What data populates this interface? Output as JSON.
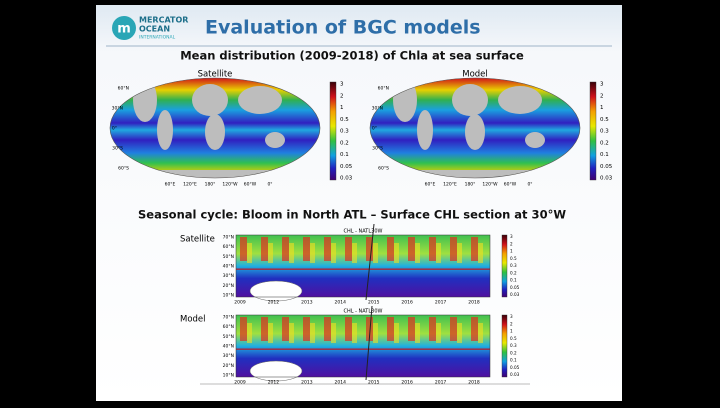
{
  "header": {
    "logo": [
      "MERCATOR",
      "OCEAN",
      "INTERNATIONAL"
    ],
    "title": "Evaluation of BGC models"
  },
  "maps": {
    "title": "Mean distribution (2009-2018) of Chla at sea surface",
    "panels": [
      {
        "label": "Satellite"
      },
      {
        "label": "Model"
      }
    ],
    "colorbar": [
      "3",
      "2",
      "1",
      "0.5",
      "0.3",
      "0.2",
      "0.1",
      "0.05",
      "0.03"
    ],
    "lon_labels": [
      "60°E",
      "120°E",
      "180°",
      "120°W",
      "60°W",
      "0°"
    ],
    "lat_labels": [
      "60°N",
      "30°N",
      "0°",
      "30°S",
      "60°S"
    ]
  },
  "sections": {
    "title": "Seasonal cycle: Bloom in North ATL – Surface CHL section at 30°W",
    "panels": [
      {
        "label": "Satellite",
        "plot_title": "CHL - NATL30W"
      },
      {
        "label": "Model",
        "plot_title": "CHL - NATL30W"
      }
    ],
    "years": [
      "2009",
      "2012",
      "2013",
      "2014",
      "2015",
      "2016",
      "2017",
      "2018"
    ],
    "lat_labels": [
      "70°N",
      "60°N",
      "50°N",
      "40°N",
      "30°N",
      "20°N",
      "10°N"
    ],
    "colorbar": [
      "3",
      "2",
      "1",
      "0.5",
      "0.3",
      "0.2",
      "0.1",
      "0.05",
      "0.03"
    ]
  }
}
